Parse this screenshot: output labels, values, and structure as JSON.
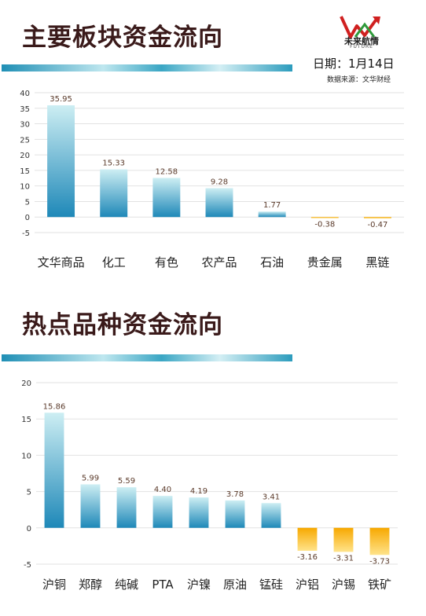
{
  "header": {
    "logo_text": "未来航情",
    "logo_sub": "FUTURE",
    "date": "日期：1月14日",
    "source": "数据来源：文华财经"
  },
  "chart_data": [
    {
      "type": "bar",
      "title": "主要板块资金流向",
      "categories": [
        "文华商品",
        "化工",
        "有色",
        "农产品",
        "石油",
        "贵金属",
        "黑链"
      ],
      "values": [
        35.95,
        15.33,
        12.58,
        9.28,
        1.77,
        -0.38,
        -0.47
      ],
      "value_labels": [
        "35.95",
        "15.33",
        "12.58",
        "9.28",
        "1.77",
        "-0.38",
        "-0.47"
      ],
      "ylim": [
        -5,
        40
      ],
      "yticks": [
        40,
        35,
        30,
        25,
        20,
        15,
        10,
        5,
        0,
        -5
      ],
      "grid": true
    },
    {
      "type": "bar",
      "title": "热点品种资金流向",
      "categories": [
        "沪铜",
        "郑醇",
        "纯碱",
        "PTA",
        "沪镍",
        "原油",
        "锰硅",
        "沪铝",
        "沪锡",
        "铁矿"
      ],
      "values": [
        15.86,
        5.99,
        5.59,
        4.4,
        4.19,
        3.78,
        3.41,
        -3.16,
        -3.31,
        -3.73
      ],
      "value_labels": [
        "15.86",
        "5.99",
        "5.59",
        "4.40",
        "4.19",
        "3.78",
        "3.41",
        "-3.16",
        "-3.31",
        "-3.73"
      ],
      "ylim": [
        -5,
        20
      ],
      "yticks": [
        20,
        15,
        10,
        5,
        0,
        -5
      ],
      "grid": true
    }
  ],
  "colors": {
    "positive_top": "#cdeef3",
    "positive_bottom": "#1e88b8",
    "negative_top": "#f7a800",
    "negative_bottom": "#ffe38a",
    "title": "#3a1a1a"
  }
}
